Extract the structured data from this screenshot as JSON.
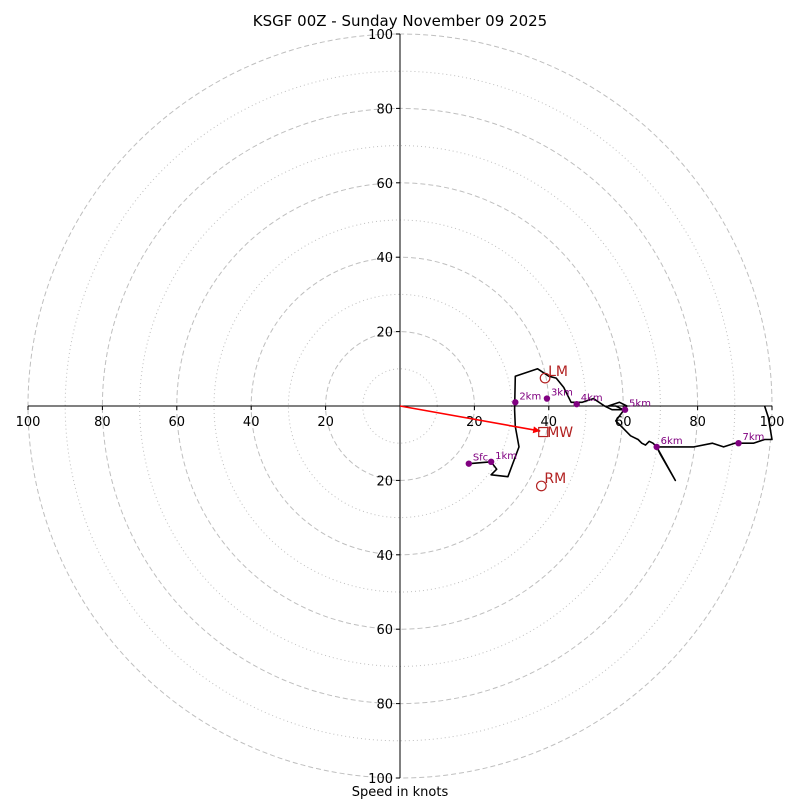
{
  "chart_data": {
    "type": "hodograph",
    "title": "KSGF 00Z - Sunday November 09 2025",
    "xlabel": "Speed in knots",
    "ylabel": "",
    "range": [
      -100,
      100
    ],
    "grid": true,
    "ring_major": [
      20,
      40,
      60,
      80,
      100
    ],
    "ring_minor": [
      10,
      30,
      50,
      70,
      90
    ],
    "tick_labels": {
      "x_neg": [
        "100",
        "80",
        "60",
        "40",
        "20"
      ],
      "x_pos": [
        "20",
        "40",
        "60",
        "80",
        "100"
      ],
      "y_pos": [
        "100",
        "80",
        "60",
        "40",
        "20"
      ],
      "y_neg": [
        "20",
        "40",
        "60",
        "80",
        "100"
      ]
    },
    "x_tick_values": [
      -100,
      -80,
      -60,
      -40,
      -20,
      20,
      40,
      60,
      80,
      100
    ],
    "y_tick_values": [
      100,
      80,
      60,
      40,
      20,
      -20,
      -40,
      -60,
      -80,
      -100
    ],
    "wind_trace": [
      [
        18.5,
        -15.5
      ],
      [
        24.5,
        -15
      ],
      [
        26,
        -17
      ],
      [
        24.5,
        -18.5
      ],
      [
        29,
        -19
      ],
      [
        32,
        -11
      ],
      [
        31,
        -5.5
      ],
      [
        30.8,
        -1
      ],
      [
        31,
        8
      ],
      [
        37,
        10
      ],
      [
        40,
        8
      ],
      [
        42,
        7.5
      ],
      [
        44,
        5
      ],
      [
        46,
        1
      ],
      [
        49,
        1
      ],
      [
        52,
        2
      ],
      [
        55,
        0
      ],
      [
        57,
        -1
      ],
      [
        60,
        -1
      ],
      [
        58,
        0
      ],
      [
        56,
        0
      ],
      [
        59,
        1
      ],
      [
        61,
        0
      ],
      [
        58,
        -4
      ],
      [
        59,
        -5
      ],
      [
        62,
        -8
      ],
      [
        64,
        -9
      ],
      [
        65,
        -10
      ],
      [
        66,
        -10.5
      ],
      [
        67,
        -9.5
      ],
      [
        68,
        -10
      ],
      [
        69,
        -11
      ],
      [
        70,
        -13
      ],
      [
        74,
        -20
      ],
      [
        69,
        -11
      ],
      [
        79,
        -11
      ],
      [
        84,
        -10
      ],
      [
        87,
        -11
      ],
      [
        90,
        -10
      ],
      [
        93,
        -10
      ],
      [
        95,
        -10
      ],
      [
        98,
        -9
      ],
      [
        100,
        -9
      ],
      [
        99,
        -3
      ],
      [
        98,
        0
      ]
    ],
    "height_markers": [
      {
        "label": "Sfc",
        "u": 18.5,
        "v": -15.5
      },
      {
        "label": "1km",
        "u": 24.5,
        "v": -15
      },
      {
        "label": "2km",
        "u": 31,
        "v": 1
      },
      {
        "label": "3km",
        "u": 39.5,
        "v": 2
      },
      {
        "label": "4km",
        "u": 47.5,
        "v": 0.5
      },
      {
        "label": "5km",
        "u": 60.5,
        "v": -1
      },
      {
        "label": "6km",
        "u": 69,
        "v": -11
      },
      {
        "label": "7km",
        "u": 91,
        "v": -10
      }
    ],
    "mean_wind": {
      "label": "MW",
      "u": 38.5,
      "v": -7
    },
    "left_mover": {
      "label": "LM",
      "u": 39,
      "v": 7.5
    },
    "right_mover": {
      "label": "RM",
      "u": 38,
      "v": -21.5
    },
    "colors": {
      "trace": "#000000",
      "markers": "#800080",
      "vectors": "#b22222",
      "mean_arrow": "#ff0000",
      "grid": "#bfbfbf"
    }
  }
}
